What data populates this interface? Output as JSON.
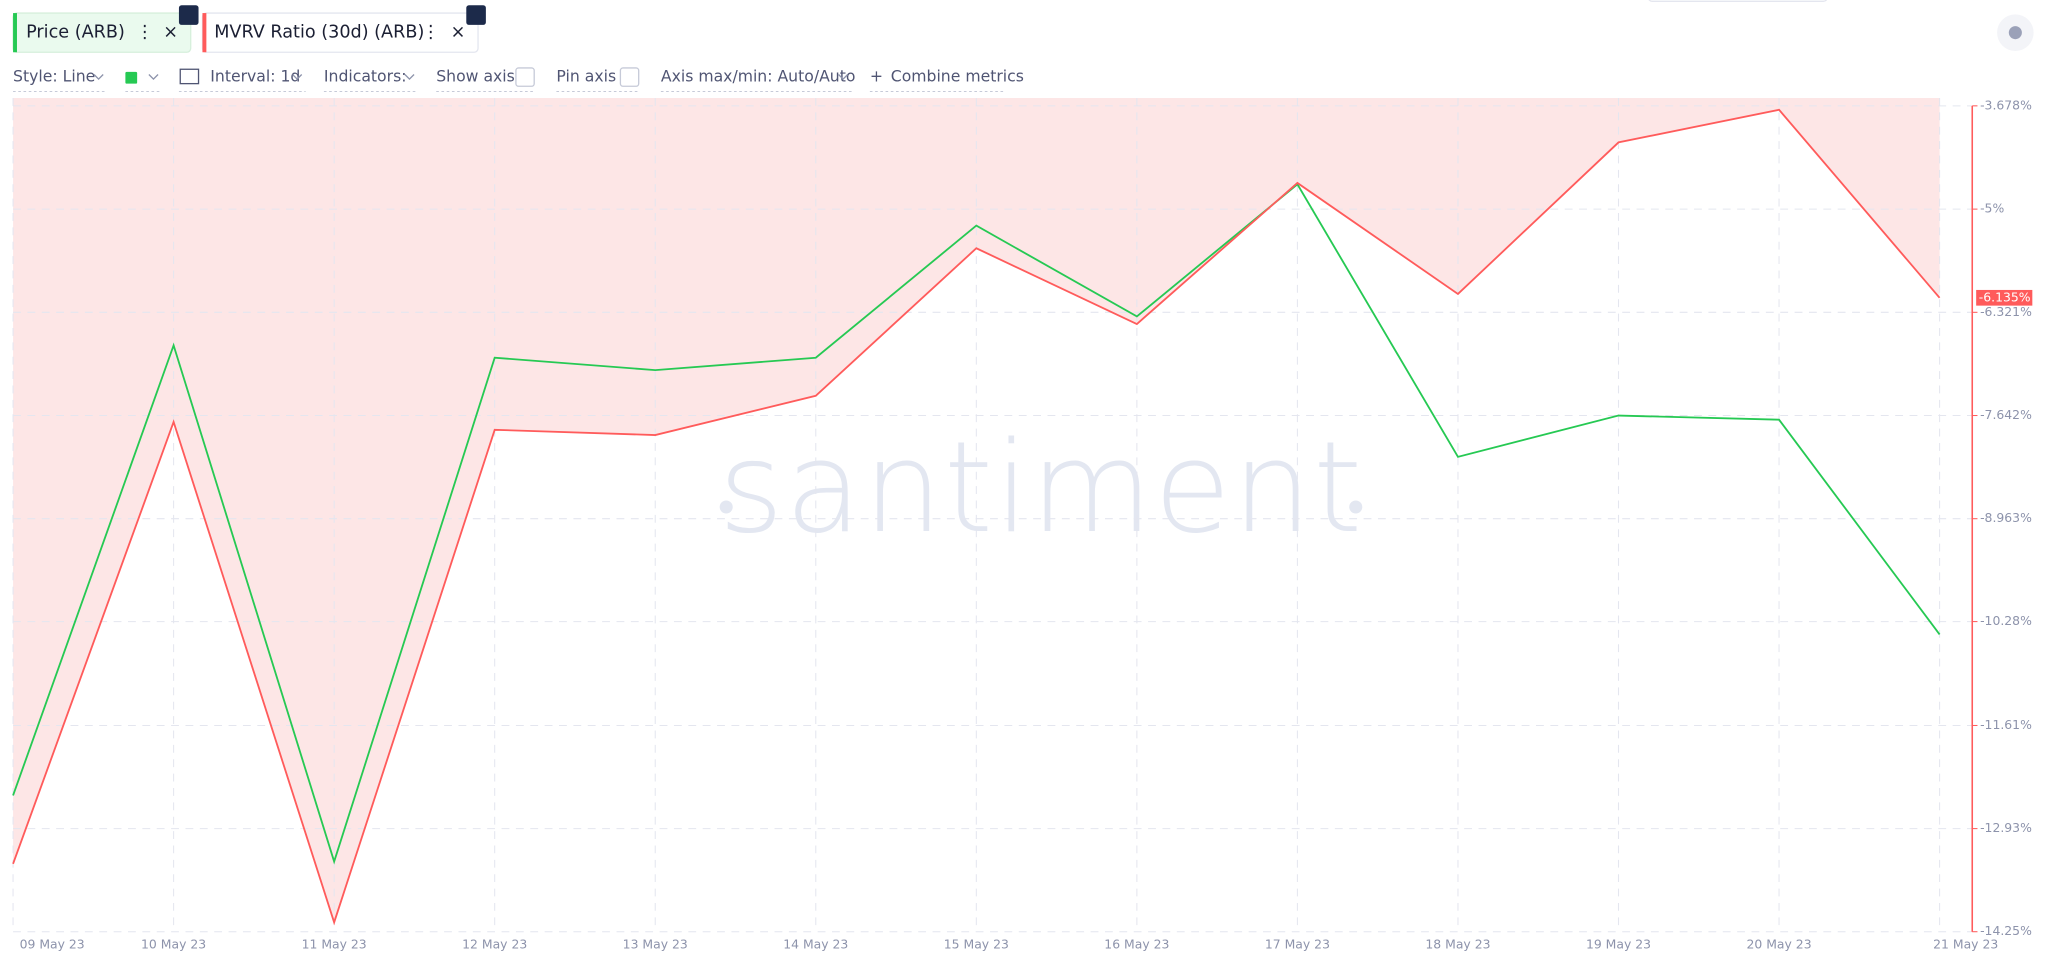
{
  "ui": {
    "toolbar": {
      "style": "Style: Line",
      "interval": "Interval: 1d",
      "indicators": "Indicators:",
      "show_axis": "Show axis",
      "pin_axis": "Pin axis",
      "axis_minmax": "Axis max/min: Auto/Auto",
      "combine": "Combine metrics"
    },
    "watermark": "santiment"
  },
  "chart_data": {
    "type": "line",
    "categories": [
      "09 May 23",
      "10 May 23",
      "11 May 23",
      "12 May 23",
      "13 May 23",
      "14 May 23",
      "15 May 23",
      "16 May 23",
      "17 May 23",
      "18 May 23",
      "19 May 23",
      "20 May 23",
      "21 May 23"
    ],
    "series": [
      {
        "name": "Price (ARB)",
        "color": "#26c953",
        "axis": "y2",
        "values": [
          1.083,
          1.192,
          1.067,
          1.189,
          1.186,
          1.189,
          1.221,
          1.199,
          1.231,
          1.165,
          1.175,
          1.174,
          1.122
        ]
      },
      {
        "name": "MVRV Ratio (30d) (ARB)",
        "color": "#ff5b5b",
        "fill": "#fde6e6",
        "values": [
          -13.38,
          -7.725,
          -14.13,
          -7.825,
          -7.892,
          -7.39,
          -5.501,
          -6.471,
          -4.665,
          -6.086,
          -4.146,
          -3.728,
          -6.135
        ],
        "value_labels": [
          null,
          null,
          null,
          null,
          null,
          null,
          null,
          null,
          null,
          null,
          null,
          null,
          "-6.135%"
        ]
      }
    ],
    "ylim": [
      -14.25,
      -3.678
    ],
    "yticks": [
      {
        "value": -3.678,
        "label": "-3.678%"
      },
      {
        "value": -5,
        "label": "-5%"
      },
      {
        "value": -6.321,
        "label": "-6.321%"
      },
      {
        "value": -7.642,
        "label": "-7.642%"
      },
      {
        "value": -8.963,
        "label": "-8.963%"
      },
      {
        "value": -10.28,
        "label": "-10.28%"
      },
      {
        "value": -11.61,
        "label": "-11.61%"
      },
      {
        "value": -12.93,
        "label": "-12.93%"
      },
      {
        "value": -14.25,
        "label": "-14.25%"
      }
    ],
    "y2lim": [
      1.05,
      1.25
    ],
    "grid": true
  }
}
